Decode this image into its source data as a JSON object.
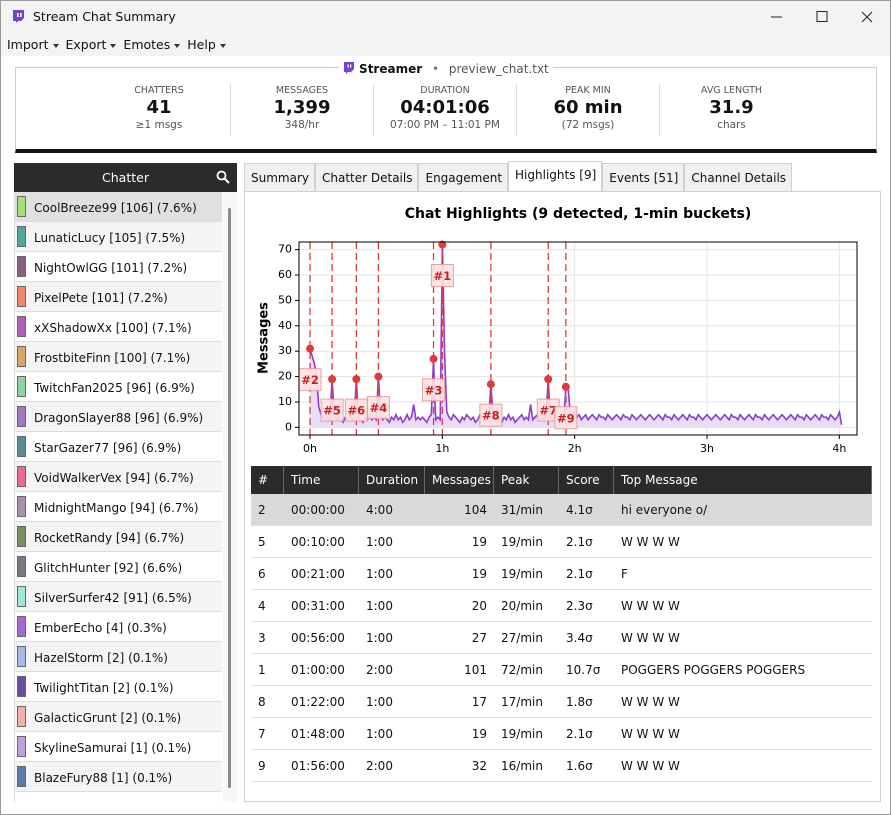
{
  "window": {
    "title": "Stream Chat Summary"
  },
  "menu": [
    "Import",
    "Export",
    "Emotes",
    "Help"
  ],
  "header": {
    "streamer": "Streamer",
    "separator": "•",
    "file": "preview_chat.txt"
  },
  "stats": [
    {
      "label": "CHATTERS",
      "value": "41",
      "sub": "≥1 msgs"
    },
    {
      "label": "MESSAGES",
      "value": "1,399",
      "sub": "348/hr"
    },
    {
      "label": "DURATION",
      "value": "04:01:06",
      "sub": "07:00 PM – 11:01 PM"
    },
    {
      "label": "PEAK MIN",
      "value": "60 min",
      "sub": "(72 msgs)"
    },
    {
      "label": "AVG LENGTH",
      "value": "31.9",
      "sub": "chars"
    }
  ],
  "chatter_panel": {
    "title": "Chatter",
    "selected": 0,
    "chatters": [
      {
        "label": "CoolBreeze99 [106] (7.6%)",
        "color": "#a6e07a"
      },
      {
        "label": "LunaticLucy [105] (7.5%)",
        "color": "#4fa89a"
      },
      {
        "label": "NightOwlGG [101] (7.2%)",
        "color": "#8a5f80"
      },
      {
        "label": "PixelPete [101] (7.2%)",
        "color": "#f08a6e"
      },
      {
        "label": "xXShadowXx [100] (7.1%)",
        "color": "#b05fb8"
      },
      {
        "label": "FrostbiteFinn [100] (7.1%)",
        "color": "#d9a56a"
      },
      {
        "label": "TwitchFan2025 [96] (6.9%)",
        "color": "#8fd4a0"
      },
      {
        "label": "DragonSlayer88 [96] (6.9%)",
        "color": "#a27ac2"
      },
      {
        "label": "StarGazer77 [96] (6.9%)",
        "color": "#5a8c94"
      },
      {
        "label": "VoidWalkerVex [94] (6.7%)",
        "color": "#e86a9a"
      },
      {
        "label": "MidnightMango [94] (6.7%)",
        "color": "#a78fb0"
      },
      {
        "label": "RocketRandy [94] (6.7%)",
        "color": "#7a8f5f"
      },
      {
        "label": "GlitchHunter [92] (6.6%)",
        "color": "#777b80"
      },
      {
        "label": "SilverSurfer42 [91] (6.5%)",
        "color": "#9ee8d6"
      },
      {
        "label": "EmberEcho [4] (0.3%)",
        "color": "#a36ad6"
      },
      {
        "label": "HazelStorm [2] (0.1%)",
        "color": "#a8b8e8"
      },
      {
        "label": "TwilightTitan [2] (0.1%)",
        "color": "#6a4ea0"
      },
      {
        "label": "GalacticGrunt [2] (0.1%)",
        "color": "#f4b0a8"
      },
      {
        "label": "SkylineSamurai [1] (0.1%)",
        "color": "#c0a0dc"
      },
      {
        "label": "BlazeFury88 [1] (0.1%)",
        "color": "#5a7aaa"
      }
    ]
  },
  "tabs": [
    "Summary",
    "Chatter Details",
    "Engagement",
    "Highlights [9]",
    "Events [51]",
    "Channel Details"
  ],
  "active_tab": 3,
  "chart_data": {
    "type": "line",
    "title": "Chat Highlights (9 detected, 1-min buckets)",
    "y_label": "Messages",
    "color": "#8a3fd0",
    "fill_color": "#e9dcf7",
    "highlight_color": "#e03a3a",
    "x": [
      0,
      1,
      2,
      3,
      4,
      5,
      6,
      7,
      8,
      9,
      10,
      11,
      12,
      13,
      14,
      15,
      16,
      17,
      18,
      19,
      20,
      21,
      22,
      23,
      24,
      25,
      26,
      27,
      28,
      29,
      30,
      31,
      32,
      33,
      34,
      35,
      36,
      37,
      38,
      39,
      40,
      41,
      42,
      43,
      44,
      45,
      46,
      47,
      48,
      49,
      50,
      51,
      52,
      53,
      54,
      55,
      56,
      57,
      58,
      59,
      60,
      61,
      62,
      63,
      64,
      65,
      66,
      67,
      68,
      69,
      70,
      71,
      72,
      73,
      74,
      75,
      76,
      77,
      78,
      79,
      80,
      81,
      82,
      83,
      84,
      85,
      86,
      87,
      88,
      89,
      90,
      91,
      92,
      93,
      94,
      95,
      96,
      97,
      98,
      99,
      100,
      101,
      102,
      103,
      104,
      105,
      106,
      107,
      108,
      109,
      110,
      111,
      112,
      113,
      114,
      115,
      116,
      117,
      118,
      119,
      120,
      121,
      122,
      123,
      124,
      125,
      126,
      127,
      128,
      129,
      130,
      131,
      132,
      133,
      134,
      135,
      136,
      137,
      138,
      139,
      140,
      141,
      142,
      143,
      144,
      145,
      146,
      147,
      148,
      149,
      150,
      151,
      152,
      153,
      154,
      155,
      156,
      157,
      158,
      159,
      160,
      161,
      162,
      163,
      164,
      165,
      166,
      167,
      168,
      169,
      170,
      171,
      172,
      173,
      174,
      175,
      176,
      177,
      178,
      179,
      180,
      181,
      182,
      183,
      184,
      185,
      186,
      187,
      188,
      189,
      190,
      191,
      192,
      193,
      194,
      195,
      196,
      197,
      198,
      199,
      200,
      201,
      202,
      203,
      204,
      205,
      206,
      207,
      208,
      209,
      210,
      211,
      212,
      213,
      214,
      215,
      216,
      217,
      218,
      219,
      220,
      221,
      222,
      223,
      224,
      225,
      226,
      227,
      228,
      229,
      230,
      231,
      232,
      233,
      234,
      235,
      236,
      237,
      238,
      239,
      240,
      241
    ],
    "values": [
      31,
      28,
      25,
      20,
      8,
      5,
      4,
      3,
      4,
      3,
      19,
      5,
      3,
      4,
      3,
      2,
      4,
      3,
      5,
      3,
      3,
      19,
      4,
      3,
      2,
      4,
      3,
      5,
      3,
      4,
      3,
      20,
      5,
      3,
      4,
      3,
      2,
      4,
      3,
      5,
      3,
      4,
      2,
      3,
      5,
      3,
      4,
      9,
      3,
      4,
      3,
      4,
      3,
      2,
      4,
      5,
      27,
      3,
      4,
      3,
      72,
      29,
      6,
      4,
      3,
      5,
      4,
      3,
      2,
      4,
      3,
      5,
      4,
      3,
      4,
      2,
      3,
      5,
      4,
      3,
      4,
      3,
      17,
      4,
      3,
      5,
      3,
      2,
      4,
      3,
      5,
      3,
      4,
      2,
      3,
      4,
      5,
      3,
      4,
      3,
      9,
      3,
      4,
      5,
      3,
      4,
      3,
      4,
      19,
      4,
      3,
      5,
      4,
      3,
      4,
      2,
      16,
      16,
      5,
      4,
      7,
      4,
      5,
      3,
      4,
      5,
      3,
      4,
      5,
      4,
      3,
      5,
      4,
      4,
      3,
      5,
      4,
      3,
      4,
      5,
      4,
      3,
      5,
      4,
      4,
      3,
      5,
      4,
      3,
      4,
      5,
      4,
      3,
      4,
      5,
      4,
      3,
      4,
      5,
      4,
      3,
      5,
      4,
      4,
      3,
      5,
      4,
      3,
      4,
      5,
      4,
      3,
      5,
      4,
      4,
      3,
      5,
      4,
      3,
      4,
      5,
      4,
      3,
      4,
      5,
      4,
      3,
      4,
      5,
      4,
      3,
      5,
      4,
      4,
      3,
      5,
      4,
      3,
      4,
      5,
      4,
      3,
      5,
      4,
      4,
      3,
      5,
      4,
      3,
      4,
      5,
      4,
      3,
      4,
      5,
      4,
      3,
      4,
      5,
      4,
      3,
      5,
      4,
      4,
      3,
      5,
      4,
      3,
      4,
      5,
      4,
      3,
      5,
      4,
      4,
      3,
      5,
      4,
      3,
      4,
      6,
      1
    ],
    "xlim": [
      -5,
      248
    ],
    "ylim": [
      -3,
      73
    ],
    "xticks": [
      {
        "value": 0,
        "label": "0h"
      },
      {
        "value": 60,
        "label": "1h"
      },
      {
        "value": 120,
        "label": "2h"
      },
      {
        "value": 180,
        "label": "3h"
      },
      {
        "value": 240,
        "label": "4h"
      }
    ],
    "yticks": [
      0,
      10,
      20,
      30,
      40,
      50,
      60,
      70
    ],
    "grid": true,
    "highlights": [
      {
        "label": "#2",
        "x": 0,
        "peak": 31
      },
      {
        "label": "#5",
        "x": 10,
        "peak": 19
      },
      {
        "label": "#6",
        "x": 21,
        "peak": 19
      },
      {
        "label": "#4",
        "x": 31,
        "peak": 20
      },
      {
        "label": "#3",
        "x": 56,
        "peak": 27
      },
      {
        "label": "#1",
        "x": 60,
        "peak": 72
      },
      {
        "label": "#8",
        "x": 82,
        "peak": 17
      },
      {
        "label": "#7",
        "x": 108,
        "peak": 19
      },
      {
        "label": "#9",
        "x": 116,
        "peak": 16
      }
    ]
  },
  "table": {
    "columns": [
      "#",
      "Time",
      "Duration",
      "Messages",
      "Peak",
      "Score",
      "Top Message"
    ],
    "selected_row": 0,
    "rows": [
      [
        "2",
        "00:00:00",
        "4:00",
        "104",
        "31/min",
        "4.1σ",
        "hi everyone o/"
      ],
      [
        "5",
        "00:10:00",
        "1:00",
        "19",
        "19/min",
        "2.1σ",
        "W W W W"
      ],
      [
        "6",
        "00:21:00",
        "1:00",
        "19",
        "19/min",
        "2.1σ",
        "F"
      ],
      [
        "4",
        "00:31:00",
        "1:00",
        "20",
        "20/min",
        "2.3σ",
        "W W W W"
      ],
      [
        "3",
        "00:56:00",
        "1:00",
        "27",
        "27/min",
        "3.4σ",
        "W W W W"
      ],
      [
        "1",
        "01:00:00",
        "2:00",
        "101",
        "72/min",
        "10.7σ",
        "POGGERS POGGERS POGGERS"
      ],
      [
        "8",
        "01:22:00",
        "1:00",
        "17",
        "17/min",
        "1.8σ",
        "W W W W"
      ],
      [
        "7",
        "01:48:00",
        "1:00",
        "19",
        "19/min",
        "2.1σ",
        "W W W W"
      ],
      [
        "9",
        "01:56:00",
        "2:00",
        "32",
        "16/min",
        "1.6σ",
        "W W W W"
      ]
    ]
  }
}
